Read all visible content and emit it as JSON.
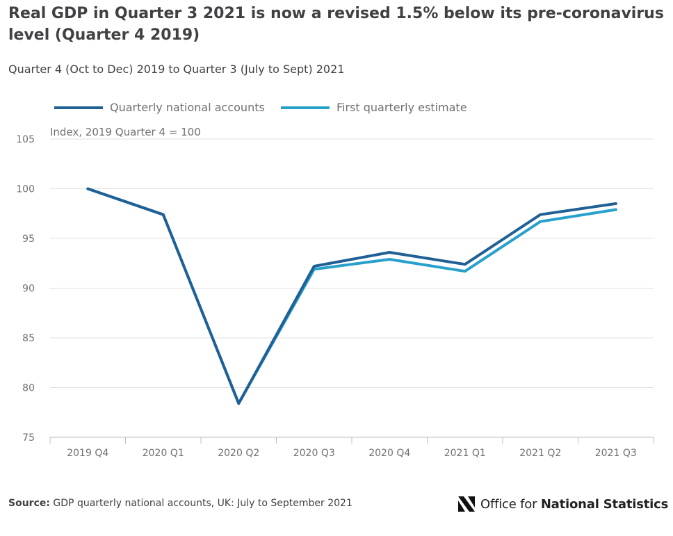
{
  "title": "Real GDP in Quarter 3 2021 is now a revised 1.5% below its pre-coronavirus level (Quarter 4 2019)",
  "subtitle": "Quarter 4 (Oct to Dec) 2019 to Quarter 3 (July to Sept) 2021",
  "source": {
    "label": "Source:",
    "text": "GDP quarterly national accounts, UK: July to September 2021"
  },
  "logo": {
    "prefix": "Office for ",
    "strong": "National Statistics",
    "icon": "ons-logo-icon"
  },
  "chart_data": {
    "type": "line",
    "title": "Real GDP in Quarter 3 2021 is now a revised 1.5% below its pre-coronavirus level (Quarter 4 2019)",
    "subtitle": "Quarter 4 (Oct to Dec) 2019 to Quarter 3 (July to Sept) 2021",
    "ylabel": "Index, 2019 Quarter 4 = 100",
    "xlabel": "",
    "categories": [
      "2019 Q4",
      "2020 Q1",
      "2020 Q2",
      "2020 Q3",
      "2020 Q4",
      "2021 Q1",
      "2021 Q2",
      "2021 Q3"
    ],
    "ylim": [
      75,
      105
    ],
    "yticks": [
      105,
      100,
      95,
      90,
      85,
      80,
      75
    ],
    "grid": true,
    "legend": "top-left",
    "series": [
      {
        "name": "Quarterly national accounts",
        "color": "#206095",
        "values": [
          100,
          97.4,
          78.4,
          92.2,
          93.6,
          92.4,
          97.4,
          98.5
        ]
      },
      {
        "name": "First quarterly estimate",
        "color": "#27a0cc",
        "values": [
          100,
          97.4,
          78.4,
          91.9,
          92.9,
          91.7,
          96.7,
          97.9
        ]
      }
    ]
  }
}
